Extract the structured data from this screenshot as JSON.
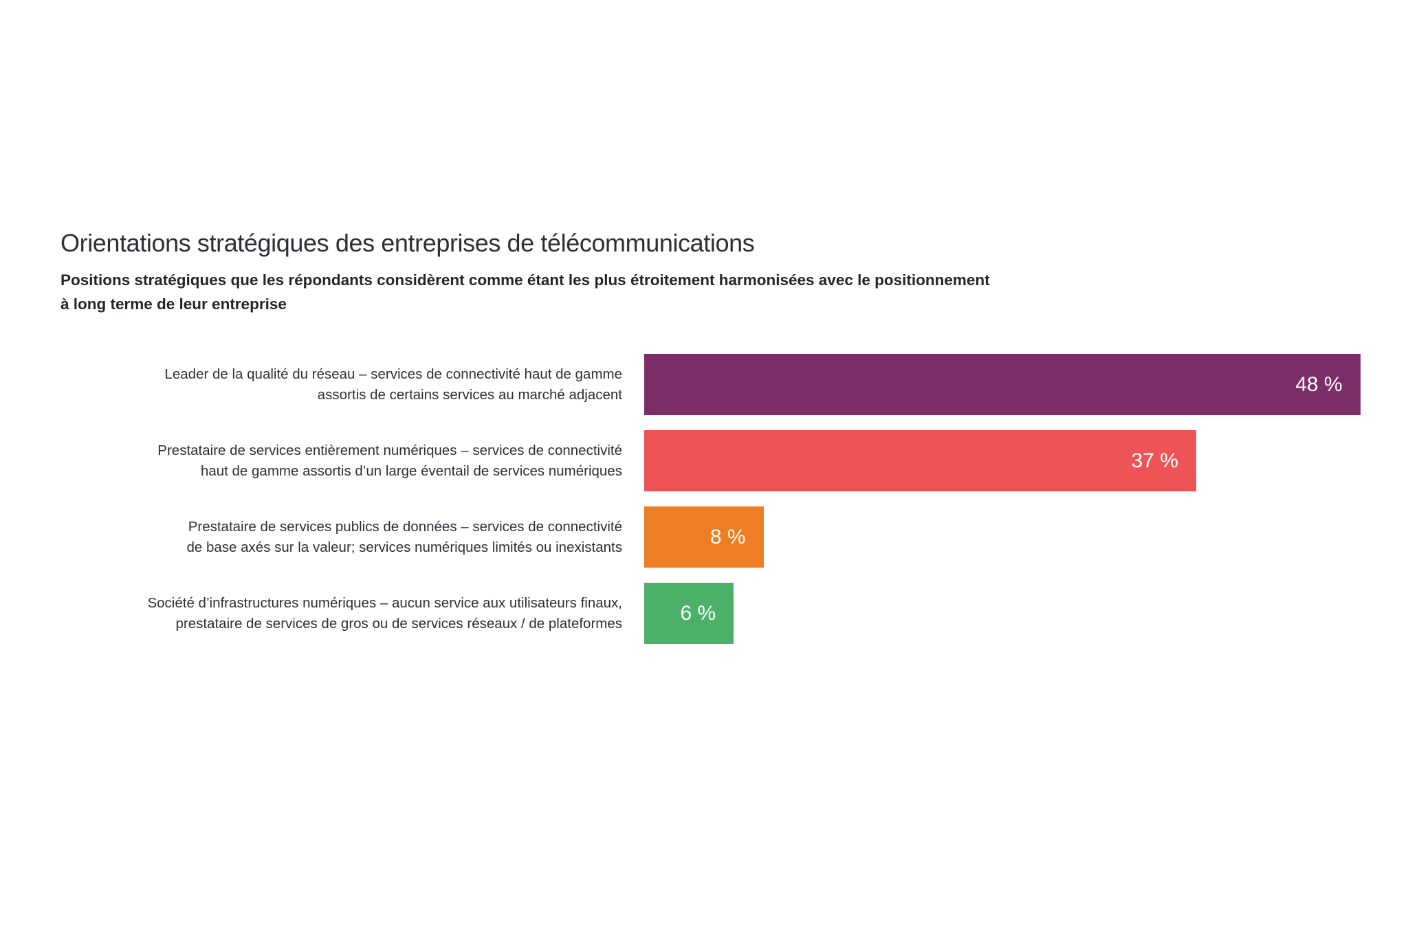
{
  "chart_data": {
    "type": "bar",
    "orientation": "horizontal",
    "title": "Orientations stratégiques des entreprises de télécommunications",
    "subtitle": "Positions stratégiques que les répondants considèrent comme étant les plus étroitement harmonisées avec le positionnement à long terme de leur entreprise",
    "subtitle_lines": [
      "Positions stratégiques que les répondants considèrent comme étant les plus étroitement harmonisées avec le positionnement",
      "à long terme de leur entreprise"
    ],
    "categories": [
      "Leader de la qualité du réseau – services de connectivité haut de gamme assortis de certains services au marché adjacent",
      "Prestataire de services entièrement numériques – services de connectivité haut de gamme assortis d’un large éventail de services numériques",
      "Prestataire de services publics de données – services de connectivité de base axés sur la valeur; services numériques limités ou inexistants",
      "Société d’infrastructures numériques – aucun service aux utilisateurs finaux, prestataire de services de gros ou de services réseaux / de plateformes"
    ],
    "category_lines": [
      [
        "Leader de la qualité du réseau – services de connectivité haut de gamme",
        "assortis de certains services au marché adjacent"
      ],
      [
        "Prestataire de services entièrement numériques – services de connectivité",
        "haut de gamme assortis d’un large éventail de services numériques"
      ],
      [
        "Prestataire de services publics de données – services de connectivité",
        "de base axés sur la valeur; services numériques limités ou inexistants"
      ],
      [
        "Société d’infrastructures numériques – aucun service aux utilisateurs finaux,",
        "prestataire de services de gros ou de services réseaux / de plateformes"
      ]
    ],
    "values": [
      48,
      37,
      8,
      6
    ],
    "value_labels": [
      "48 %",
      "37 %",
      "8 %",
      "6 %"
    ],
    "unit": "%",
    "bar_colors": [
      "#7B2E68",
      "#EE5455",
      "#EE7D23",
      "#4CB168"
    ],
    "value_label_color": "#FFFFFF",
    "text_color": "#2E2E38",
    "background_color": "#FFFFFF",
    "xlim": [
      0,
      50
    ],
    "grid": false,
    "legend": false,
    "value_labels_position": "inside-end"
  }
}
